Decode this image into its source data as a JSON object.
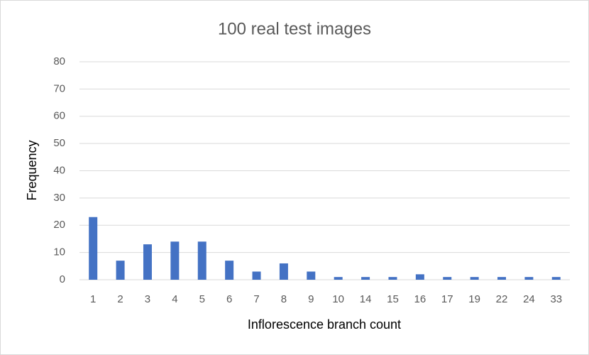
{
  "chart_data": {
    "type": "bar",
    "title": "100 real test images",
    "x_label": "Inflorescence branch count",
    "y_label": "Frequency",
    "categories": [
      "1",
      "2",
      "3",
      "4",
      "5",
      "6",
      "7",
      "8",
      "9",
      "10",
      "14",
      "15",
      "16",
      "17",
      "19",
      "22",
      "24",
      "33"
    ],
    "values": [
      23,
      7,
      13,
      14,
      14,
      7,
      3,
      6,
      3,
      1,
      1,
      1,
      2,
      1,
      1,
      1,
      1,
      1
    ],
    "color": "#4472c4",
    "ylim": [
      0,
      80
    ],
    "yticks": [
      0,
      10,
      20,
      30,
      40,
      50,
      60,
      70,
      80
    ],
    "grid": true
  }
}
